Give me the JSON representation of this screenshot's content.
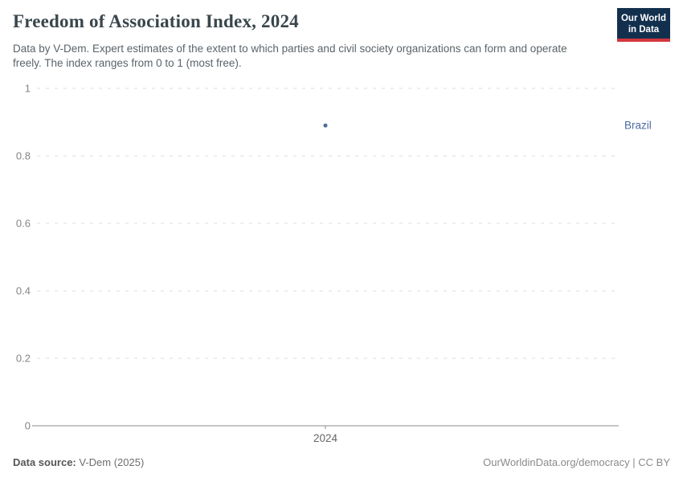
{
  "header": {
    "title": "Freedom of Association Index, 2024",
    "subtitle": "Data by V-Dem. Expert estimates of the extent to which parties and civil society organizations can form and operate freely. The index ranges from 0 to 1 (most free).",
    "logo": {
      "line1": "Our World",
      "line2": "in Data",
      "bg_color": "#12304e",
      "accent_color": "#d1373d"
    }
  },
  "chart_data": {
    "type": "scatter",
    "title": "Freedom of Association Index, 2024",
    "categories": [
      "2024"
    ],
    "series": [
      {
        "name": "Brazil",
        "values": [
          0.89
        ],
        "color": "#4c6a9c"
      }
    ],
    "xlabel": "",
    "ylabel": "",
    "y_ticks": [
      "0",
      "0.2",
      "0.4",
      "0.6",
      "0.8",
      "1"
    ],
    "x_ticks": [
      "2024"
    ],
    "ylim": [
      0,
      1
    ],
    "grid": true,
    "legend_position": "right-of-point",
    "colors": {
      "gridline": "#dcdcdc",
      "axis": "#8b8b8b",
      "tick_label": "#858585",
      "x_tick_label": "#666666",
      "entity_label": "#4c6ba0"
    }
  },
  "footer": {
    "source_label": "Data source:",
    "source_value": "V-Dem (2025)",
    "attribution": "OurWorldinData.org/democracy | CC BY"
  }
}
